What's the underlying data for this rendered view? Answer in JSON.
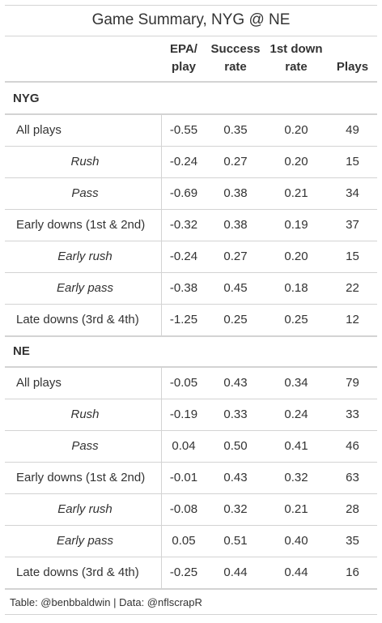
{
  "title": "Game Summary, NYG @ NE",
  "columns": [
    "EPA/ play",
    "Success rate",
    "1st down rate",
    "Plays"
  ],
  "groups": [
    {
      "name": "NYG",
      "rows": [
        {
          "label": "All plays",
          "italic": false,
          "cells": [
            "-0.55",
            "0.35",
            "0.20",
            "49"
          ]
        },
        {
          "label": "Rush",
          "italic": true,
          "cells": [
            "-0.24",
            "0.27",
            "0.20",
            "15"
          ]
        },
        {
          "label": "Pass",
          "italic": true,
          "cells": [
            "-0.69",
            "0.38",
            "0.21",
            "34"
          ]
        },
        {
          "label": "Early downs (1st & 2nd)",
          "italic": false,
          "cells": [
            "-0.32",
            "0.38",
            "0.19",
            "37"
          ]
        },
        {
          "label": "Early rush",
          "italic": true,
          "cells": [
            "-0.24",
            "0.27",
            "0.20",
            "15"
          ]
        },
        {
          "label": "Early pass",
          "italic": true,
          "cells": [
            "-0.38",
            "0.45",
            "0.18",
            "22"
          ]
        },
        {
          "label": "Late downs (3rd & 4th)",
          "italic": false,
          "cells": [
            "-1.25",
            "0.25",
            "0.25",
            "12"
          ]
        }
      ]
    },
    {
      "name": "NE",
      "rows": [
        {
          "label": "All plays",
          "italic": false,
          "cells": [
            "-0.05",
            "0.43",
            "0.34",
            "79"
          ]
        },
        {
          "label": "Rush",
          "italic": true,
          "cells": [
            "-0.19",
            "0.33",
            "0.24",
            "33"
          ]
        },
        {
          "label": "Pass",
          "italic": true,
          "cells": [
            "0.04",
            "0.50",
            "0.41",
            "46"
          ]
        },
        {
          "label": "Early downs (1st & 2nd)",
          "italic": false,
          "cells": [
            "-0.01",
            "0.43",
            "0.32",
            "63"
          ]
        },
        {
          "label": "Early rush",
          "italic": true,
          "cells": [
            "-0.08",
            "0.32",
            "0.21",
            "28"
          ]
        },
        {
          "label": "Early pass",
          "italic": true,
          "cells": [
            "0.05",
            "0.51",
            "0.40",
            "35"
          ]
        },
        {
          "label": "Late downs (3rd & 4th)",
          "italic": false,
          "cells": [
            "-0.25",
            "0.44",
            "0.44",
            "16"
          ]
        }
      ]
    }
  ],
  "footer": "Table: @benbbaldwin | Data: @nflscrapR"
}
